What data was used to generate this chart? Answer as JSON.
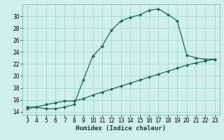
{
  "xlabel": "Humidex (Indice chaleur)",
  "background_color": "#cff0eb",
  "grid_color": "#a8d8d0",
  "line_color": "#1a6b5a",
  "x_curve": [
    3,
    4,
    5,
    6,
    7,
    8,
    9,
    10,
    11,
    12,
    13,
    14,
    15,
    16,
    17,
    18,
    19,
    20,
    21,
    22,
    23
  ],
  "y_curve": [
    14.8,
    14.8,
    14.5,
    14.5,
    14.8,
    15.2,
    19.4,
    23.3,
    25.0,
    27.7,
    29.2,
    29.8,
    30.2,
    31.0,
    31.2,
    30.3,
    29.2,
    23.5,
    23.0,
    22.8,
    22.8
  ],
  "x_line": [
    3,
    4,
    5,
    6,
    7,
    8,
    9,
    10,
    11,
    12,
    13,
    14,
    15,
    16,
    17,
    18,
    19,
    20,
    21,
    22,
    23
  ],
  "y_line": [
    14.5,
    14.8,
    15.2,
    15.5,
    15.8,
    15.8,
    16.2,
    16.8,
    17.3,
    17.8,
    18.3,
    18.8,
    19.3,
    19.8,
    20.3,
    20.8,
    21.3,
    21.8,
    22.2,
    22.5,
    22.8
  ],
  "xlim": [
    2.5,
    23.5
  ],
  "ylim": [
    13.5,
    32.0
  ],
  "yticks": [
    14,
    16,
    18,
    20,
    22,
    24,
    26,
    28,
    30
  ],
  "xticks": [
    3,
    4,
    5,
    6,
    7,
    8,
    9,
    10,
    11,
    12,
    13,
    14,
    15,
    16,
    17,
    18,
    19,
    20,
    21,
    22,
    23
  ],
  "tick_fontsize": 5.5,
  "xlabel_fontsize": 6.5,
  "marker_size": 2.2,
  "line_width": 0.9
}
